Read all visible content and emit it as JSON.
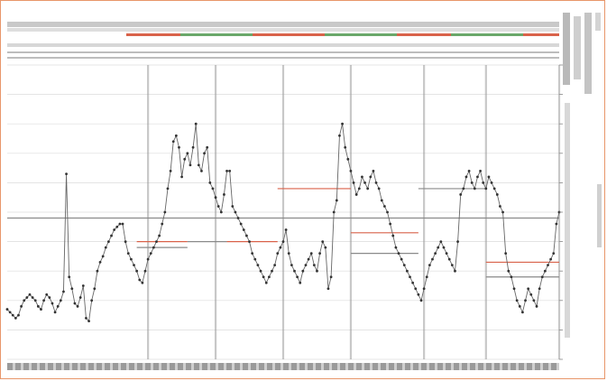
{
  "colors": {
    "frame": "#e8966a",
    "series_line": "#666666",
    "marker": "#333333",
    "grid": "#dcdcdc",
    "session_divider": "#9c9c9c",
    "mean_line_red": "#d9624a",
    "mean_line_gray": "#8a8a8a",
    "band_red": "#d9634a",
    "band_green": "#6aa86a",
    "band_orange": "#e9a24a"
  },
  "chart_data": {
    "type": "line",
    "title": "",
    "xlabel": "",
    "ylabel": "",
    "grid": true,
    "y_axis_side": "right",
    "xlim": [
      0,
      196
    ],
    "ylim": [
      0,
      100
    ],
    "series": [
      {
        "values": [
          17,
          16,
          15,
          14,
          15,
          18,
          20,
          21,
          22,
          21,
          20,
          18,
          17,
          20,
          22,
          21,
          19,
          16,
          18,
          20,
          23,
          63,
          28,
          24,
          19,
          18,
          21,
          25,
          14,
          13,
          20,
          24,
          30,
          33,
          35,
          38,
          40,
          42,
          44,
          45,
          46,
          46,
          40,
          36,
          34,
          32,
          30,
          27,
          26,
          30,
          34,
          36,
          38,
          40,
          42,
          46,
          50,
          58,
          64,
          74,
          76,
          72,
          62,
          68,
          70,
          66,
          72,
          80,
          66,
          64,
          70,
          72,
          60,
          58,
          55,
          52,
          50,
          56,
          64,
          64,
          52,
          50,
          48,
          46,
          44,
          42,
          40,
          36,
          34,
          32,
          30,
          28,
          26,
          28,
          30,
          32,
          36,
          38,
          40,
          44,
          36,
          32,
          30,
          28,
          26,
          30,
          32,
          34,
          36,
          32,
          30,
          36,
          40,
          38,
          24,
          28,
          50,
          54,
          76,
          80,
          72,
          68,
          64,
          60,
          56,
          58,
          62,
          60,
          58,
          62,
          64,
          60,
          58,
          54,
          52,
          50,
          46,
          42,
          38,
          36,
          34,
          32,
          30,
          28,
          26,
          24,
          22,
          20,
          24,
          28,
          32,
          34,
          36,
          38,
          40,
          38,
          36,
          34,
          32,
          30,
          40,
          56,
          58,
          62,
          64,
          60,
          58,
          62,
          64,
          60,
          58,
          62,
          60,
          58,
          56,
          52,
          50,
          36,
          30,
          28,
          24,
          20,
          18,
          16,
          20,
          24,
          22,
          20,
          18,
          24,
          28,
          30,
          32,
          34,
          36,
          46,
          50
        ]
      }
    ],
    "center_lines": [
      {
        "from": 0,
        "to": 196,
        "y": 48,
        "color": "gray"
      },
      {
        "from": 46,
        "to": 64,
        "y": 40,
        "color": "red"
      },
      {
        "from": 64,
        "to": 78,
        "y": 40,
        "color": "gray"
      },
      {
        "from": 46,
        "to": 64,
        "y": 38,
        "color": "gray"
      },
      {
        "from": 78,
        "to": 96,
        "y": 40,
        "color": "red"
      },
      {
        "from": 96,
        "to": 122,
        "y": 58,
        "color": "red"
      },
      {
        "from": 122,
        "to": 146,
        "y": 43,
        "color": "red"
      },
      {
        "from": 122,
        "to": 146,
        "y": 36,
        "color": "gray"
      },
      {
        "from": 146,
        "to": 170,
        "y": 58,
        "color": "gray"
      },
      {
        "from": 170,
        "to": 196,
        "y": 33,
        "color": "red"
      },
      {
        "from": 170,
        "to": 196,
        "y": 28,
        "color": "gray"
      }
    ],
    "session_dividers": [
      50,
      74,
      98,
      122,
      148,
      170,
      196
    ]
  }
}
